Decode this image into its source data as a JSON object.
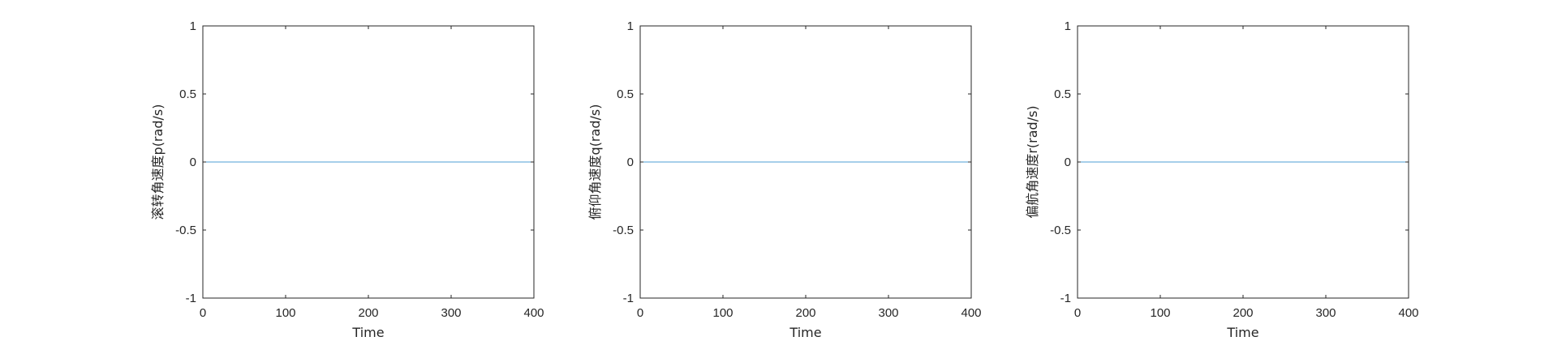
{
  "chart_data": [
    {
      "type": "line",
      "xlabel": "Time",
      "ylabel": "滚转角速度p(rad/s)",
      "xlim": [
        0,
        400
      ],
      "ylim": [
        -1,
        1
      ],
      "xticks": [
        0,
        100,
        200,
        300,
        400
      ],
      "yticks": [
        -1,
        -0.5,
        0,
        0.5,
        1
      ],
      "xtick_labels": [
        "0",
        "100",
        "200",
        "300",
        "400"
      ],
      "ytick_labels": [
        "-1",
        "-0.5",
        "0",
        "0.5",
        "1"
      ],
      "grid": false,
      "series": [
        {
          "x": [
            0,
            400
          ],
          "y": [
            0,
            0
          ],
          "color": "#4d9fd6"
        }
      ]
    },
    {
      "type": "line",
      "xlabel": "Time",
      "ylabel": "俯仰角速度q(rad/s)",
      "xlim": [
        0,
        400
      ],
      "ylim": [
        -1,
        1
      ],
      "xticks": [
        0,
        100,
        200,
        300,
        400
      ],
      "yticks": [
        -1,
        -0.5,
        0,
        0.5,
        1
      ],
      "xtick_labels": [
        "0",
        "100",
        "200",
        "300",
        "400"
      ],
      "ytick_labels": [
        "-1",
        "-0.5",
        "0",
        "0.5",
        "1"
      ],
      "grid": false,
      "series": [
        {
          "x": [
            0,
            400
          ],
          "y": [
            0,
            0
          ],
          "color": "#4d9fd6"
        }
      ]
    },
    {
      "type": "line",
      "xlabel": "Time",
      "ylabel": "偏航角速度r(rad/s)",
      "xlim": [
        0,
        400
      ],
      "ylim": [
        -1,
        1
      ],
      "xticks": [
        0,
        100,
        200,
        300,
        400
      ],
      "yticks": [
        -1,
        -0.5,
        0,
        0.5,
        1
      ],
      "xtick_labels": [
        "0",
        "100",
        "200",
        "300",
        "400"
      ],
      "ytick_labels": [
        "-1",
        "-0.5",
        "0",
        "0.5",
        "1"
      ],
      "grid": false,
      "series": [
        {
          "x": [
            0,
            400
          ],
          "y": [
            0,
            0
          ],
          "color": "#4d9fd6"
        }
      ]
    }
  ]
}
